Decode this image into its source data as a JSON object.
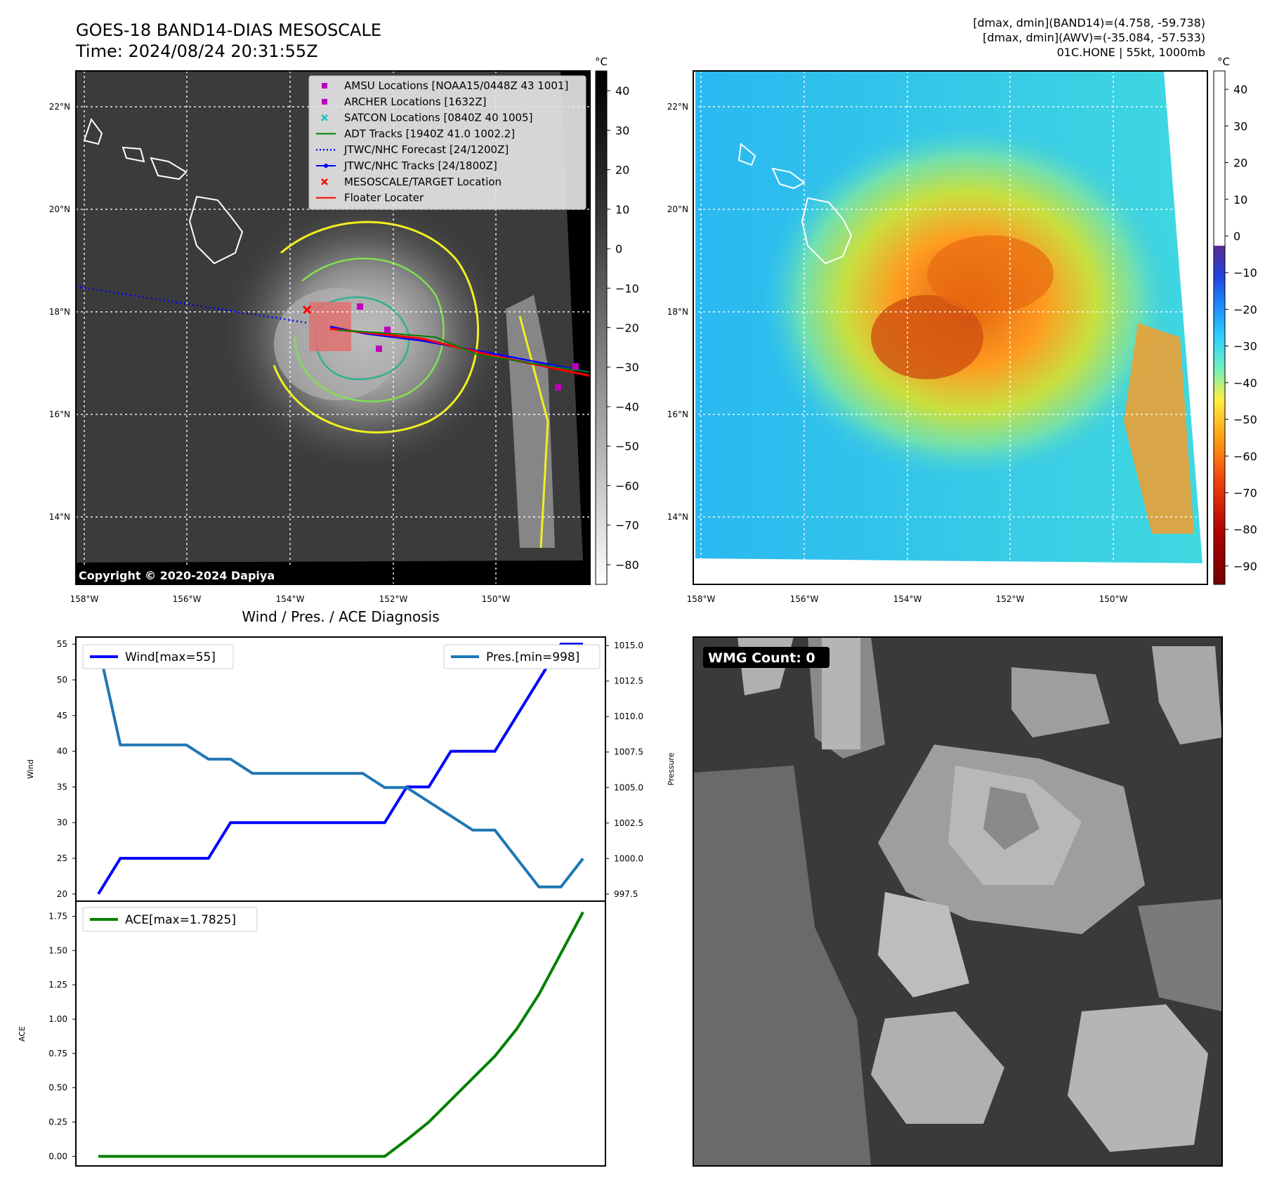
{
  "header": {
    "title_line1": "GOES-18 BAND14-DIAS MESOSCALE",
    "title_line2": "Time: 2024/08/24 20:31:55Z",
    "info_line1": "[dmax, dmin](BAND14)=(4.758, -59.738)",
    "info_line2": "[dmax, dmin](AWV)=(-35.084, -57.533)",
    "info_line3": "01C.HONE | 55kt, 1000mb"
  },
  "map_left": {
    "copyright": "Copyright © 2020-2024 Dapiya",
    "colorbar_unit": "°C",
    "colorbar_ticks": [
      "40",
      "30",
      "20",
      "10",
      "0",
      "−10",
      "−20",
      "−30",
      "−40",
      "−50",
      "−60",
      "−70",
      "−80"
    ],
    "lat_labels": [
      "22°N",
      "20°N",
      "18°N",
      "16°N",
      "14°N"
    ],
    "lon_labels": [
      "158°W",
      "156°W",
      "154°W",
      "152°W",
      "150°W"
    ],
    "legend": [
      {
        "label": "AMSU Locations [NOAA15/0448Z 43 1001]",
        "marker": "square",
        "color": "#c000c0"
      },
      {
        "label": "ARCHER Locations [1632Z]",
        "marker": "square",
        "color": "#c000c0"
      },
      {
        "label": "SATCON Locations [0840Z 40 1005]",
        "marker": "x",
        "color": "#20c0c0"
      },
      {
        "label": "ADT Tracks [1940Z 41.0 1002.2]",
        "marker": "line",
        "color": "#008000"
      },
      {
        "label": "JTWC/NHC Forecast [24/1200Z]",
        "marker": "dotted",
        "color": "#0000ff"
      },
      {
        "label": "JTWC/NHC Tracks [24/1800Z]",
        "marker": "dotline",
        "color": "#0000ff"
      },
      {
        "label": "MESOSCALE/TARGET Location",
        "marker": "x",
        "color": "#ff0000"
      },
      {
        "label": "Floater Locater",
        "marker": "line",
        "color": "#ff0000"
      }
    ]
  },
  "map_right": {
    "colorbar_unit": "°C",
    "colorbar_ticks": [
      "40",
      "30",
      "20",
      "10",
      "0",
      "−10",
      "−20",
      "−30",
      "−40",
      "−50",
      "−60",
      "−70",
      "−80",
      "−90"
    ],
    "lat_labels": [
      "22°N",
      "20°N",
      "18°N",
      "16°N",
      "14°N"
    ],
    "lon_labels": [
      "158°W",
      "156°W",
      "154°W",
      "152°W",
      "150°W"
    ]
  },
  "wmg": {
    "label": "WMG Count: 0"
  },
  "chart_data": [
    {
      "type": "line",
      "title": "Wind / Pres. / ACE Diagnosis",
      "ylabel": "Wind",
      "ylabel_right": "Pressure",
      "ylim": [
        19,
        56
      ],
      "ylim_right": [
        997,
        1015.6
      ],
      "yticks": [
        20,
        25,
        30,
        35,
        40,
        45,
        50,
        55
      ],
      "yticks_right": [
        "997.5",
        "1000.0",
        "1002.5",
        "1005.0",
        "1007.5",
        "1010.0",
        "1012.5",
        "1015.0"
      ],
      "x": [
        0,
        1,
        2,
        3,
        4,
        5,
        6,
        7,
        8,
        9,
        10,
        11,
        12,
        13,
        14,
        15,
        16,
        17,
        18,
        19,
        20,
        21,
        22
      ],
      "series": [
        {
          "name": "Wind[max=55]",
          "axis": "left",
          "color": "#0000ff",
          "values": [
            20,
            25,
            25,
            25,
            25,
            25,
            30,
            30,
            30,
            30,
            30,
            30,
            30,
            30,
            35,
            35,
            40,
            40,
            40,
            45,
            50,
            55,
            55
          ]
        },
        {
          "name": "Pres.[min=998]",
          "axis": "right",
          "color": "#1f77b4",
          "values": [
            1015,
            1008,
            1008,
            1008,
            1008,
            1007,
            1007,
            1006,
            1006,
            1006,
            1006,
            1006,
            1006,
            1005,
            1005,
            1004,
            1003,
            1002,
            1002,
            1000,
            998,
            998,
            1000
          ]
        }
      ]
    },
    {
      "type": "line",
      "ylabel": "ACE",
      "ylim": [
        -0.07,
        1.86
      ],
      "yticks": [
        "0.00",
        "0.25",
        "0.50",
        "0.75",
        "1.00",
        "1.25",
        "1.50",
        "1.75"
      ],
      "x": [
        0,
        1,
        2,
        3,
        4,
        5,
        6,
        7,
        8,
        9,
        10,
        11,
        12,
        13,
        14,
        15,
        16,
        17,
        18,
        19,
        20,
        21,
        22
      ],
      "series": [
        {
          "name": "ACE[max=1.7825]",
          "color": "#008000",
          "values": [
            0,
            0,
            0,
            0,
            0,
            0,
            0,
            0,
            0,
            0,
            0,
            0,
            0,
            0,
            0.12,
            0.25,
            0.41,
            0.57,
            0.73,
            0.93,
            1.18,
            1.48,
            1.78
          ]
        }
      ]
    }
  ]
}
